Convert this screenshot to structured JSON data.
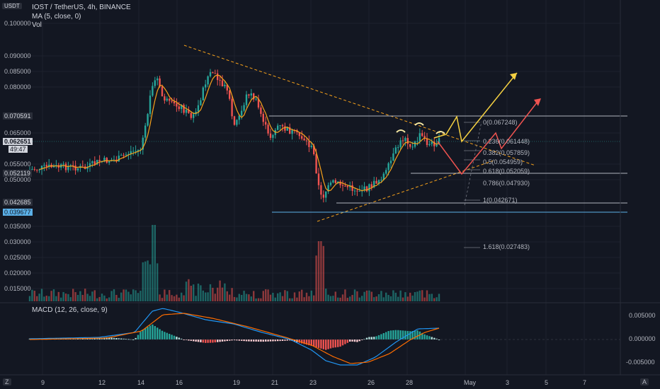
{
  "header": {
    "symbol_badge": "USDT",
    "title": "IOST / TetherUS, 4h, BINANCE",
    "ma_label": "MA (5, close, 0)",
    "vol_label": "Vol",
    "macd_label": "MACD (12, 26, close, 9)"
  },
  "price_axis": {
    "ticks": [
      "0.100000",
      "0.090000",
      "0.085000",
      "0.080000",
      "0.065000",
      "0.055000",
      "0.050000",
      "0.035000",
      "0.030000",
      "0.025000",
      "0.020000",
      "0.015000"
    ],
    "tags": [
      {
        "text": "0.070591",
        "color": "#d1d4dc",
        "bg": "#2a2e39"
      },
      {
        "text": "0.062651",
        "color": "#131722",
        "bg": "#d1d4dc"
      },
      {
        "text": "49:47",
        "color": "#131722",
        "bg": "#d1d4dc"
      },
      {
        "text": "0.052119",
        "color": "#d1d4dc",
        "bg": "#2a2e39"
      },
      {
        "text": "0.042685",
        "color": "#d1d4dc",
        "bg": "#2a2e39"
      },
      {
        "text": "0.039677",
        "color": "#131722",
        "bg": "#5bb0e8"
      }
    ]
  },
  "macd_axis": {
    "ticks": [
      "0.005000",
      "0.000000",
      "-0.005000"
    ]
  },
  "time_axis": {
    "labels": [
      "9",
      "12",
      "14",
      "16",
      "19",
      "21",
      "23",
      "26",
      "28",
      "May",
      "3",
      "5",
      "7"
    ],
    "left_button": "Z",
    "right_button": "A"
  },
  "fib_levels": [
    "0(0.067248)",
    "0.236(0.061448)",
    "0.382(0.057859)",
    "0.5(0.054959)",
    "0.618(0.052059)",
    "0.786(0.047930)",
    "1(0.042671)",
    "1.618(0.027483)"
  ],
  "colors": {
    "up": "#26a69a",
    "down": "#ef5350",
    "ma": "#f7a21b",
    "macd": "#2196f3",
    "signal": "#ff6d00",
    "projection_yellow": "#f5d142",
    "projection_red": "#ef5350",
    "bg": "#131722"
  }
}
